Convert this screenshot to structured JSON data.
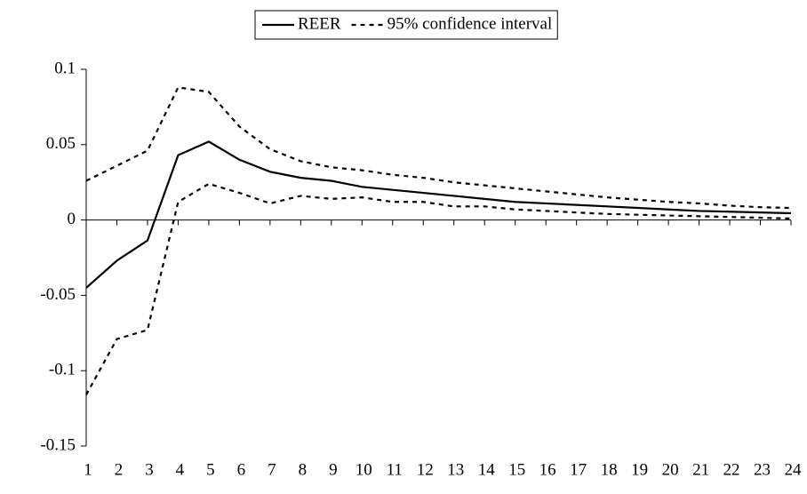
{
  "chart_data": {
    "type": "line",
    "categories": [
      "1",
      "2",
      "3",
      "4",
      "5",
      "6",
      "7",
      "8",
      "9",
      "10",
      "11",
      "12",
      "13",
      "14",
      "15",
      "16",
      "17",
      "18",
      "19",
      "20",
      "21",
      "22",
      "23",
      "24"
    ],
    "series": [
      {
        "name": "REER",
        "color": "#000000",
        "dash": "solid",
        "values": [
          -0.045,
          -0.027,
          -0.0136,
          0.043,
          0.052,
          0.04,
          0.032,
          0.028,
          0.026,
          0.022,
          0.02,
          0.018,
          0.016,
          0.014,
          0.012,
          0.011,
          0.01,
          0.009,
          0.008,
          0.007,
          0.006,
          0.0055,
          0.005,
          0.0045
        ]
      },
      {
        "name": "95% confidence interval",
        "color": "#000000",
        "dash": "dotted",
        "values": [
          0.026,
          0.036,
          0.046,
          0.088,
          0.085,
          0.062,
          0.047,
          0.039,
          0.035,
          0.033,
          0.03,
          0.028,
          0.025,
          0.023,
          0.021,
          0.019,
          0.017,
          0.015,
          0.0135,
          0.012,
          0.011,
          0.0095,
          0.0085,
          0.008
        ]
      },
      {
        "color": "#000000",
        "dash": "dotted",
        "values": [
          -0.116,
          -0.079,
          -0.073,
          0.012,
          0.024,
          0.018,
          0.011,
          0.016,
          0.014,
          0.015,
          0.012,
          0.012,
          0.009,
          0.009,
          0.007,
          0.006,
          0.005,
          0.004,
          0.0035,
          0.003,
          0.0025,
          0.002,
          0.0015,
          0.001
        ]
      }
    ],
    "ylim": [
      -0.15,
      0.1
    ],
    "yticks": [
      0.1,
      0.05,
      0,
      -0.05,
      -0.1,
      -0.15
    ],
    "legend": "top"
  }
}
